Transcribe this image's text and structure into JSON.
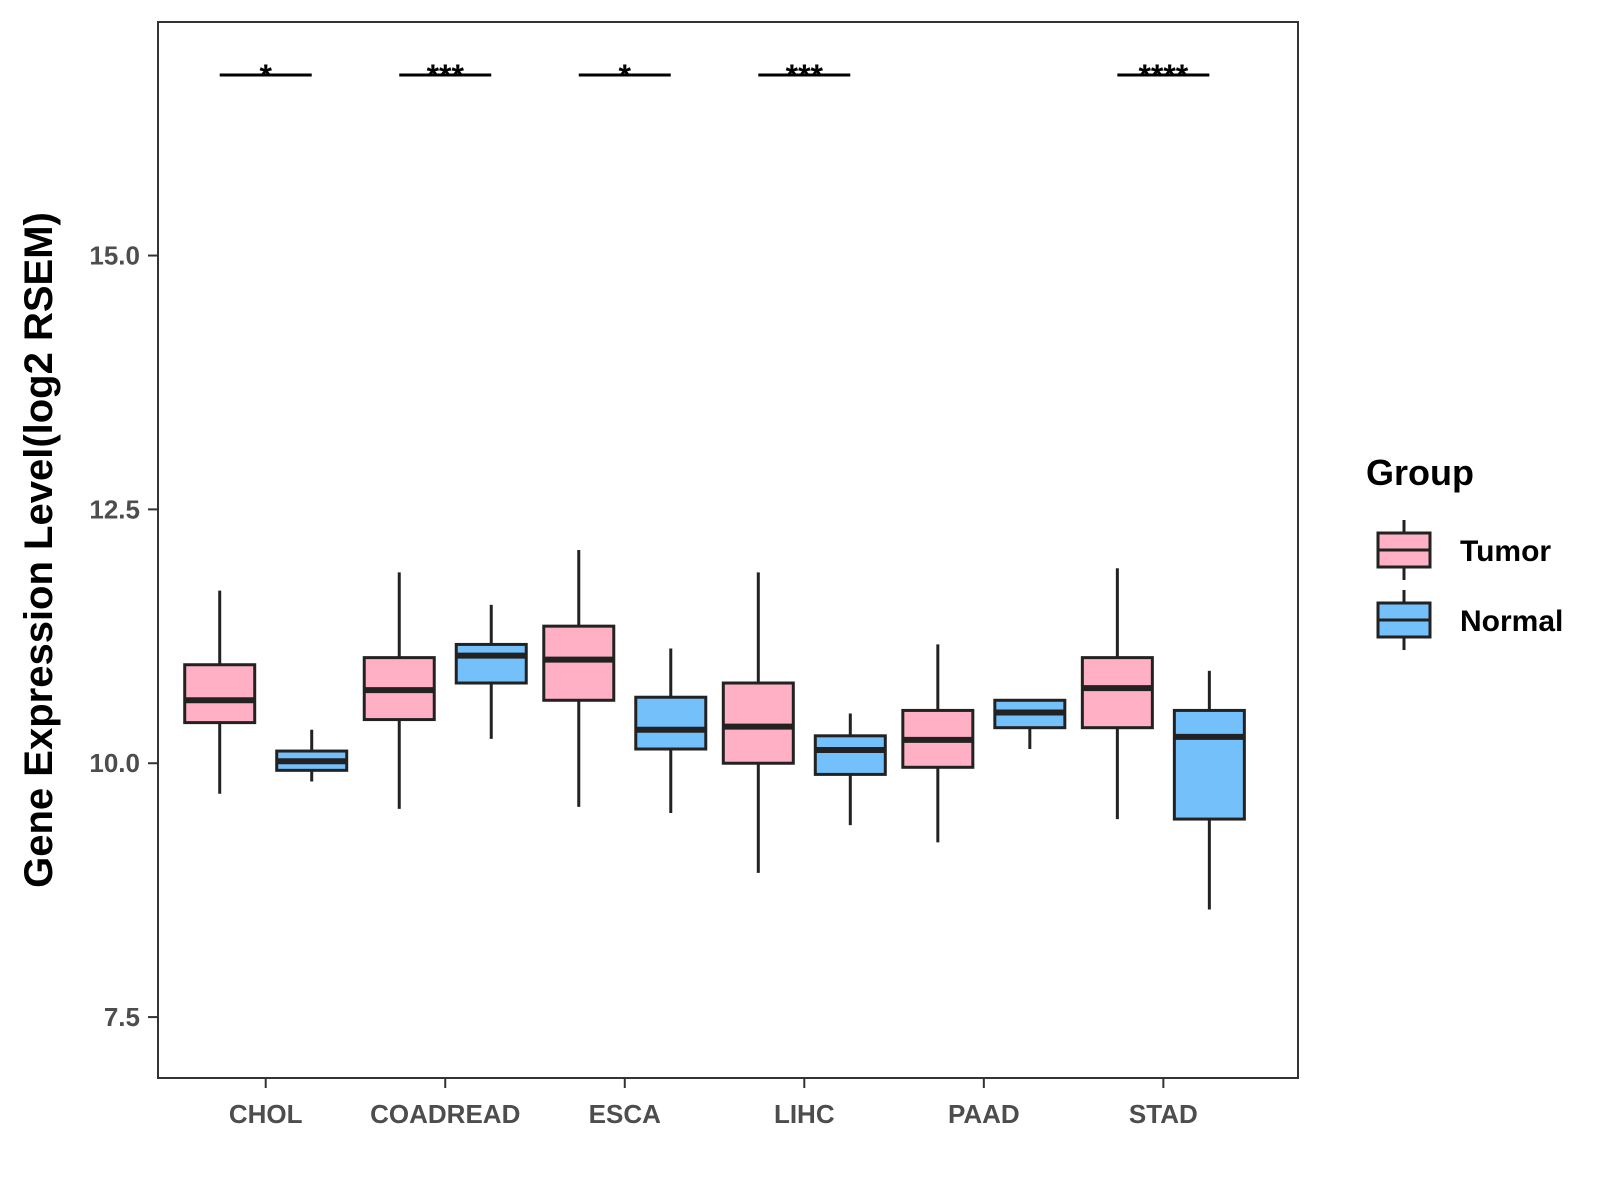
{
  "chart_data": {
    "type": "boxplot",
    "title": "",
    "xlabel": "",
    "ylabel": "Gene Expression Level(log2 RSEM)",
    "ylim": [
      6.9,
      17.3
    ],
    "yticks": [
      7.5,
      10.0,
      12.5,
      15.0
    ],
    "ytick_labels": [
      "7.5",
      "10.0",
      "12.5",
      "15.0"
    ],
    "categories": [
      "CHOL",
      "COADREAD",
      "ESCA",
      "LIHC",
      "PAAD",
      "STAD"
    ],
    "legend": {
      "title": "Group",
      "position": "right",
      "entries": [
        {
          "name": "Tumor",
          "color": "#ffb0c4"
        },
        {
          "name": "Normal",
          "color": "#74c0fb"
        }
      ]
    },
    "series": [
      {
        "name": "Tumor",
        "color": "#ffb0c4",
        "boxes": [
          {
            "category": "CHOL",
            "lower": 9.7,
            "q1": 10.4,
            "median": 10.62,
            "q3": 10.97,
            "upper": 11.7
          },
          {
            "category": "COADREAD",
            "lower": 9.55,
            "q1": 10.43,
            "median": 10.72,
            "q3": 11.04,
            "upper": 11.88
          },
          {
            "category": "ESCA",
            "lower": 9.57,
            "q1": 10.62,
            "median": 11.02,
            "q3": 11.35,
            "upper": 12.1
          },
          {
            "category": "LIHC",
            "lower": 8.92,
            "q1": 10.0,
            "median": 10.36,
            "q3": 10.79,
            "upper": 11.88
          },
          {
            "category": "PAAD",
            "lower": 9.22,
            "q1": 9.96,
            "median": 10.23,
            "q3": 10.52,
            "upper": 11.17
          },
          {
            "category": "STAD",
            "lower": 9.45,
            "q1": 10.35,
            "median": 10.74,
            "q3": 11.04,
            "upper": 11.92
          }
        ]
      },
      {
        "name": "Normal",
        "color": "#74c0fb",
        "boxes": [
          {
            "category": "CHOL",
            "lower": 9.82,
            "q1": 9.93,
            "median": 10.02,
            "q3": 10.12,
            "upper": 10.33
          },
          {
            "category": "COADREAD",
            "lower": 10.24,
            "q1": 10.79,
            "median": 11.06,
            "q3": 11.17,
            "upper": 11.56
          },
          {
            "category": "ESCA",
            "lower": 9.51,
            "q1": 10.14,
            "median": 10.33,
            "q3": 10.65,
            "upper": 11.13
          },
          {
            "category": "LIHC",
            "lower": 9.39,
            "q1": 9.89,
            "median": 10.13,
            "q3": 10.27,
            "upper": 10.49
          },
          {
            "category": "PAAD",
            "lower": 10.14,
            "q1": 10.35,
            "median": 10.5,
            "q3": 10.62,
            "upper": 10.63
          },
          {
            "category": "STAD",
            "lower": 8.56,
            "q1": 9.45,
            "median": 10.26,
            "q3": 10.52,
            "upper": 10.91
          }
        ]
      }
    ],
    "significance": [
      {
        "category": "CHOL",
        "label": "*"
      },
      {
        "category": "COADREAD",
        "label": "***"
      },
      {
        "category": "ESCA",
        "label": "*"
      },
      {
        "category": "LIHC",
        "label": "***"
      },
      {
        "category": "STAD",
        "label": "****"
      }
    ]
  }
}
